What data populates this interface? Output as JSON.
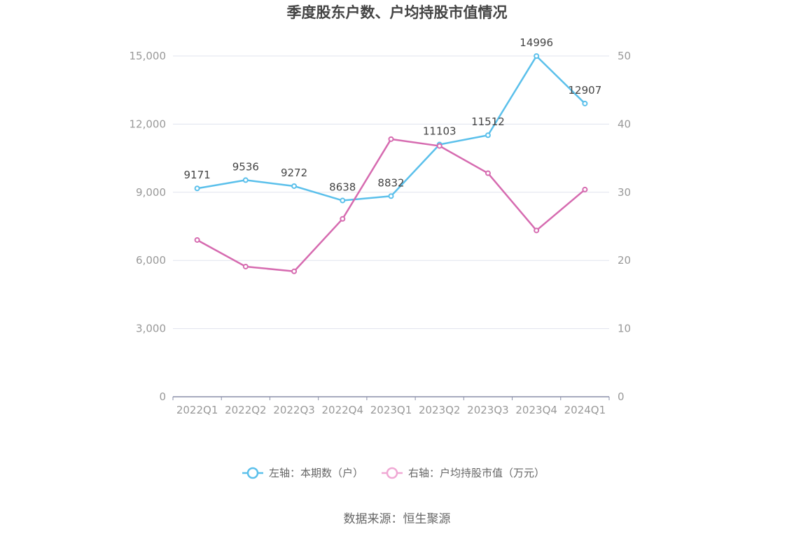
{
  "chart_data": {
    "type": "line",
    "title": "季度股东户数、户均持股市值情况",
    "categories": [
      "2022Q1",
      "2022Q2",
      "2022Q3",
      "2022Q4",
      "2023Q1",
      "2023Q2",
      "2023Q3",
      "2023Q4",
      "2024Q1"
    ],
    "y_left": {
      "ticks": [
        "0",
        "3,000",
        "6,000",
        "9,000",
        "12,000",
        "15,000"
      ],
      "range": [
        0,
        15000
      ]
    },
    "y_right": {
      "ticks": [
        "0",
        "10",
        "20",
        "30",
        "40",
        "50"
      ],
      "range": [
        0,
        50
      ]
    },
    "series": [
      {
        "name": "左轴：本期数（户）",
        "axis": "left",
        "color": "#5bc0eb",
        "values": [
          9171,
          9536,
          9272,
          8638,
          8832,
          11103,
          11512,
          14996,
          12907
        ],
        "labels": [
          "9171",
          "9536",
          "9272",
          "8638",
          "8832",
          "11103",
          "11512",
          "14996",
          "12907"
        ]
      },
      {
        "name": "右轴：户均持股市值（万元）",
        "axis": "right",
        "color": "#d66bb0",
        "values": [
          23.0,
          19.1,
          18.4,
          26.1,
          37.8,
          36.8,
          32.8,
          24.4,
          30.4
        ]
      }
    ],
    "legend_position": "bottom-center",
    "grid": true
  },
  "source": "数据来源：恒生聚源"
}
